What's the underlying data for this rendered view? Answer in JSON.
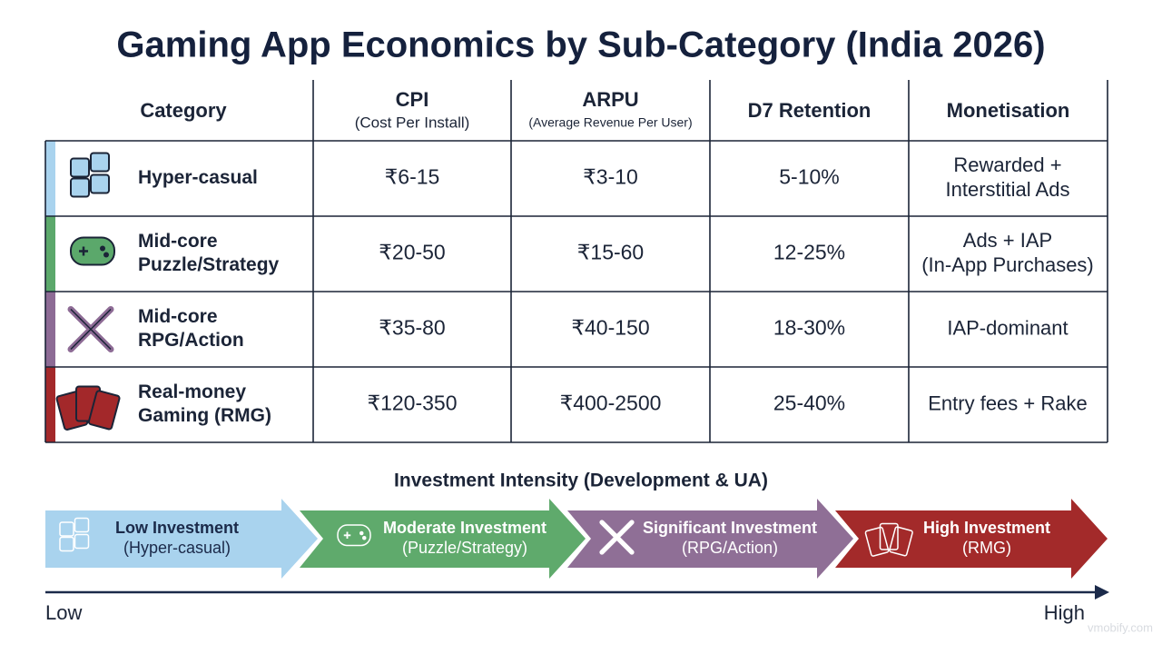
{
  "title": "Gaming App Economics by Sub-Category (India 2026)",
  "table": {
    "headers": [
      {
        "label": "Category"
      },
      {
        "label": "CPI",
        "note": "(Cost Per Install)"
      },
      {
        "label": "ARPU",
        "note": "(Average Revenue Per User)"
      },
      {
        "label": "D7 Retention"
      },
      {
        "label": "Monetisation"
      }
    ],
    "rows": [
      {
        "category": [
          "Hyper-casual"
        ],
        "cpi": "₹6-15",
        "arpu": "₹3-10",
        "d7": "5-10%",
        "monetisation": [
          "Rewarded +",
          "Interstitial Ads"
        ]
      },
      {
        "category": [
          "Mid-core",
          "Puzzle/Strategy"
        ],
        "cpi": "₹20-50",
        "arpu": "₹15-60",
        "d7": "12-25%",
        "monetisation": [
          "Ads + IAP",
          "(In-App Purchases)"
        ]
      },
      {
        "category": [
          "Mid-core",
          "RPG/Action"
        ],
        "cpi": "₹35-80",
        "arpu": "₹40-150",
        "d7": "18-30%",
        "monetisation": [
          "IAP-dominant"
        ]
      },
      {
        "category": [
          "Real-money",
          "Gaming (RMG)"
        ],
        "cpi": "₹120-350",
        "arpu": "₹400-2500",
        "d7": "25-40%",
        "monetisation": [
          "Entry fees + Rake"
        ]
      }
    ]
  },
  "investment": {
    "title": "Investment Intensity (Development & UA)",
    "stages": [
      {
        "label": "Low Investment",
        "note": "(Hyper-casual)"
      },
      {
        "label": "Moderate Investment",
        "note": "(Puzzle/Strategy)"
      },
      {
        "label": "Significant Investment",
        "note": "(RPG/Action)"
      },
      {
        "label": "High Investment",
        "note": "(RMG)"
      }
    ],
    "low": "Low",
    "high": "High"
  },
  "watermark": "vmobify.com"
}
